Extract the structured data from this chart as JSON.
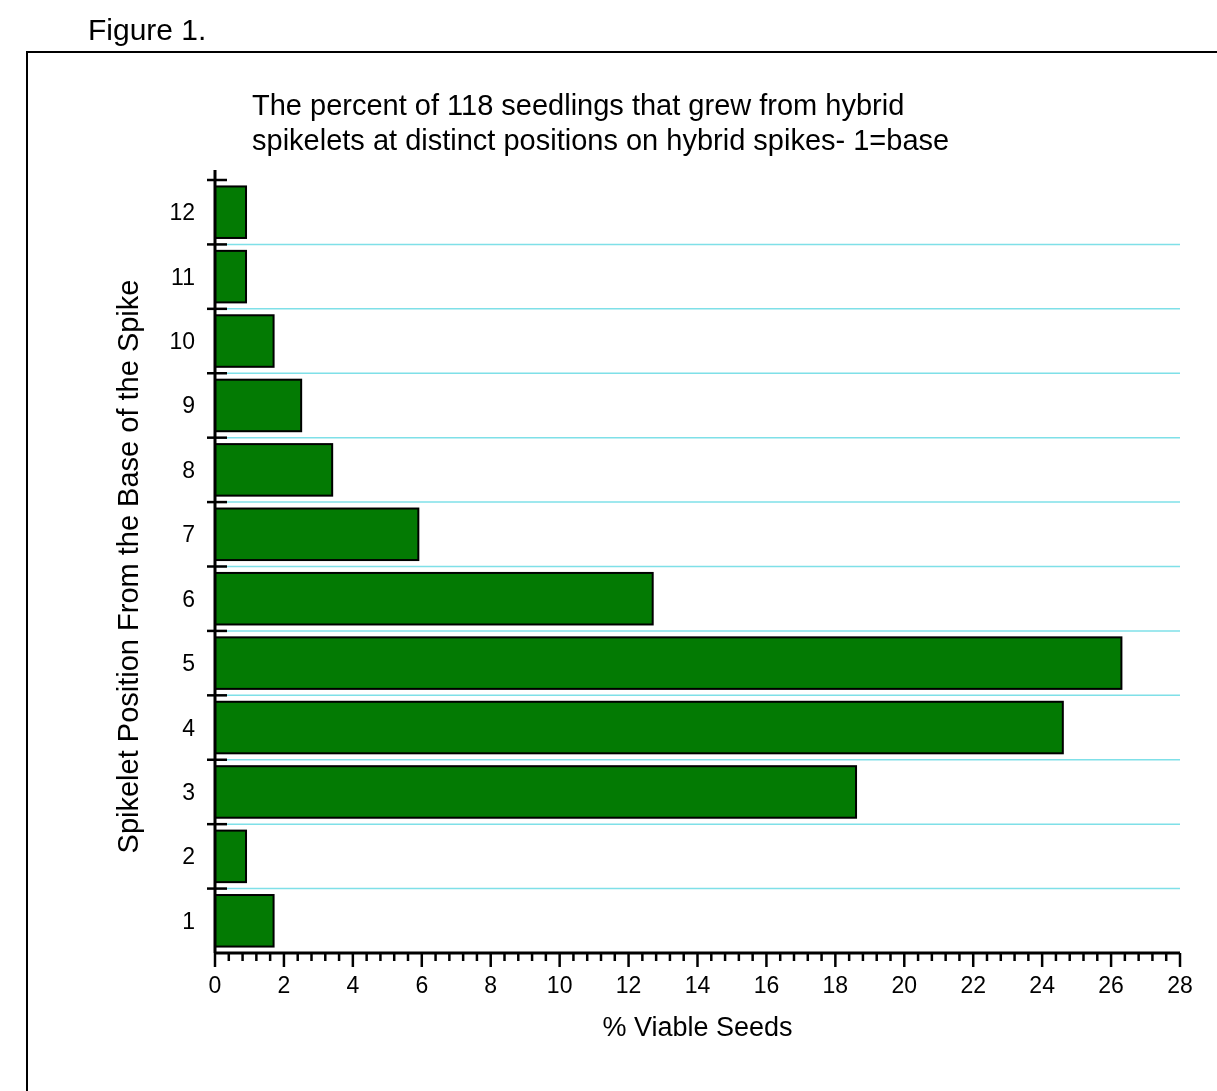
{
  "chart_data": {
    "type": "bar",
    "orientation": "horizontal",
    "title": "Figure 1.",
    "subtitle": "The percent of 118 seedlings that grew from hybrid\nspikelets at distinct positions on hybrid spikes- 1=base",
    "xlabel": "% Viable Seeds",
    "ylabel": "Spikelet Position From the Base of the Spike",
    "categories": [
      "12",
      "11",
      "10",
      "9",
      "8",
      "7",
      "6",
      "5",
      "4",
      "3",
      "2",
      "1"
    ],
    "values": [
      0.9,
      0.9,
      1.7,
      2.5,
      3.4,
      5.9,
      12.7,
      26.3,
      24.6,
      18.6,
      0.9,
      1.7
    ],
    "color": "#037a03",
    "xlim": [
      0,
      28
    ],
    "xticks": [
      0,
      {
        "value": 0.4,
        "label": null
      },
      {
        "value": 0.8,
        "label": null
      },
      {
        "value": 1.2,
        "label": null
      },
      {
        "value": 1.6,
        "label": null
      },
      2,
      {
        "value": 2.4,
        "label": null
      },
      {
        "value": 2.8,
        "label": null
      },
      {
        "value": 3.2,
        "label": null
      },
      {
        "value": 3.6,
        "label": null
      },
      4,
      {
        "value": 4.4,
        "label": null
      },
      {
        "value": 4.8,
        "label": null
      },
      {
        "value": 5.2,
        "label": null
      },
      {
        "value": 5.6,
        "label": null
      },
      6,
      {
        "value": 6.4,
        "label": null
      },
      {
        "value": 6.8,
        "label": null
      },
      {
        "value": 7.2,
        "label": null
      },
      {
        "value": 7.6,
        "label": null
      },
      8,
      {
        "value": 8.4,
        "label": null
      },
      {
        "value": 8.8,
        "label": null
      },
      {
        "value": 9.2,
        "label": null
      },
      {
        "value": 9.6,
        "label": null
      },
      10,
      {
        "value": 10.4,
        "label": null
      },
      {
        "value": 10.8,
        "label": null
      },
      {
        "value": 11.2,
        "label": null
      },
      {
        "value": 11.6,
        "label": null
      },
      12,
      {
        "value": 12.4,
        "label": null
      },
      {
        "value": 12.8,
        "label": null
      },
      {
        "value": 13.2,
        "label": null
      },
      {
        "value": 13.6,
        "label": null
      },
      14,
      {
        "value": 14.4,
        "label": null
      },
      {
        "value": 14.8,
        "label": null
      },
      {
        "value": 15.2,
        "label": null
      },
      {
        "value": 15.6,
        "label": null
      },
      16,
      {
        "value": 16.4,
        "label": null
      },
      {
        "value": 16.8,
        "label": null
      },
      {
        "value": 17.2,
        "label": null
      },
      {
        "value": 17.6,
        "label": null
      },
      18,
      {
        "value": 18.4,
        "label": null
      },
      {
        "value": 18.8,
        "label": null
      },
      {
        "value": 19.2,
        "label": null
      },
      {
        "value": 19.6,
        "label": null
      },
      20,
      {
        "value": 20.4,
        "label": null
      },
      {
        "value": 20.8,
        "label": null
      },
      {
        "value": 21.2,
        "label": null
      },
      {
        "value": 21.6,
        "label": null
      },
      22,
      {
        "value": 22.4,
        "label": null
      },
      {
        "value": 22.8,
        "label": null
      },
      {
        "value": 23.2,
        "label": null
      },
      {
        "value": 23.6,
        "label": null
      },
      24,
      {
        "value": 24.4,
        "label": null
      },
      {
        "value": 24.8,
        "label": null
      },
      {
        "value": 25.2,
        "label": null
      },
      {
        "value": 25.6,
        "label": null
      },
      26,
      {
        "value": 26.4,
        "label": null
      },
      {
        "value": 26.8,
        "label": null
      },
      {
        "value": 27.2,
        "label": null
      },
      {
        "value": 27.6,
        "label": null
      },
      28
    ],
    "grid": "y"
  }
}
